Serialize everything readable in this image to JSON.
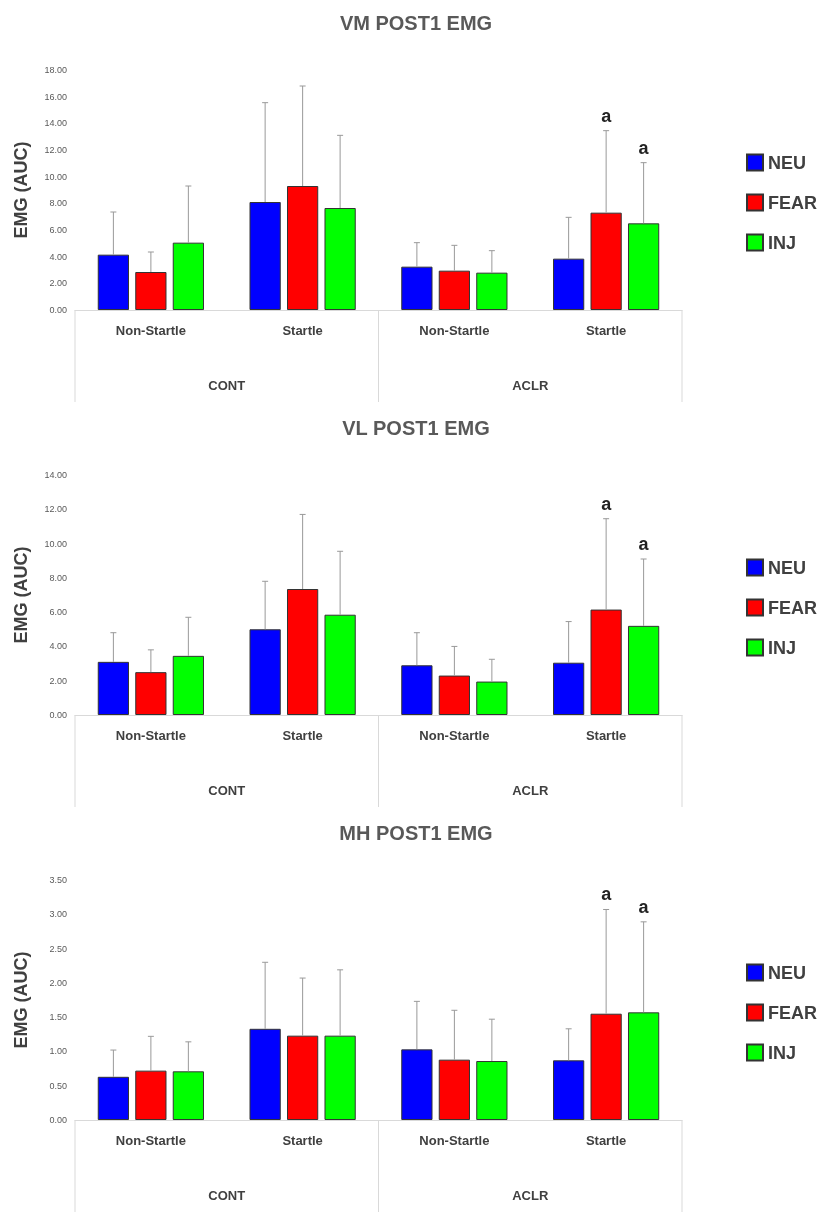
{
  "chart_data": [
    {
      "type": "bar",
      "title": "VM POST1 EMG",
      "ylabel": "EMG (AUC)",
      "categories": [
        "Non-Startle",
        "Startle",
        "Non-Startle",
        "Startle"
      ],
      "series": [
        {
          "name": "NEU",
          "color": "#0000ff",
          "values": [
            4.15,
            8.1,
            3.25,
            3.85
          ],
          "errors": [
            [
              4.15,
              7.35
            ],
            [
              8.1,
              15.55
            ],
            [
              3.25,
              5.05
            ],
            [
              3.85,
              6.95
            ]
          ]
        },
        {
          "name": "FEAR",
          "color": "#ff0000",
          "values": [
            2.85,
            9.3,
            2.95,
            7.3
          ],
          "errors": [
            [
              2.85,
              4.35
            ],
            [
              9.3,
              16.8
            ],
            [
              2.95,
              4.85
            ],
            [
              7.3,
              13.45
            ]
          ]
        },
        {
          "name": "INJ",
          "color": "#00ff00",
          "values": [
            5.05,
            7.65,
            2.8,
            6.5
          ],
          "errors": [
            [
              5.05,
              9.3
            ],
            [
              7.65,
              13.1
            ],
            [
              2.8,
              4.45
            ],
            [
              6.5,
              11.05
            ]
          ]
        }
      ],
      "ylim": [
        0,
        18
      ],
      "yticks": [
        {
          "value": 0,
          "label": "0.00"
        },
        {
          "value": 2,
          "label": "2.00"
        },
        {
          "value": 4,
          "label": "4.00"
        },
        {
          "value": 6,
          "label": "6.00"
        },
        {
          "value": 8,
          "label": "8.00"
        },
        {
          "value": 10,
          "label": "10.00"
        },
        {
          "value": 12,
          "label": "12.00"
        },
        {
          "value": 14,
          "label": "14.00"
        },
        {
          "value": 16,
          "label": "16.00"
        },
        {
          "value": 18,
          "label": "18.00"
        }
      ],
      "annotations": [
        "CONT",
        "ACLR",
        "a",
        "a"
      ],
      "legend": "right",
      "grid": false
    },
    {
      "type": "bar",
      "title": "VL POST1 EMG",
      "ylabel": "EMG (AUC)",
      "categories": [
        "Non-Startle",
        "Startle",
        "Non-Startle",
        "Startle"
      ],
      "series": [
        {
          "name": "NEU",
          "color": "#0000ff",
          "values": [
            3.1,
            5.0,
            2.9,
            3.05
          ],
          "errors": [
            [
              3.1,
              4.8
            ],
            [
              5.0,
              7.8
            ],
            [
              2.9,
              4.8
            ],
            [
              3.05,
              5.45
            ]
          ]
        },
        {
          "name": "FEAR",
          "color": "#ff0000",
          "values": [
            2.5,
            7.35,
            2.3,
            6.15
          ],
          "errors": [
            [
              2.5,
              3.8
            ],
            [
              7.35,
              11.7
            ],
            [
              2.3,
              4.0
            ],
            [
              6.15,
              11.45
            ]
          ]
        },
        {
          "name": "INJ",
          "color": "#00ff00",
          "values": [
            3.45,
            5.85,
            1.95,
            5.2
          ],
          "errors": [
            [
              3.45,
              5.7
            ],
            [
              5.85,
              9.55
            ],
            [
              1.95,
              3.25
            ],
            [
              5.2,
              9.1
            ]
          ]
        }
      ],
      "ylim": [
        0,
        14
      ],
      "yticks": [
        {
          "value": 0,
          "label": "0.00"
        },
        {
          "value": 2,
          "label": "2.00"
        },
        {
          "value": 4,
          "label": "4.00"
        },
        {
          "value": 6,
          "label": "6.00"
        },
        {
          "value": 8,
          "label": "8.00"
        },
        {
          "value": 10,
          "label": "10.00"
        },
        {
          "value": 12,
          "label": "12.00"
        },
        {
          "value": 14,
          "label": "14.00"
        }
      ],
      "annotations": [
        "CONT",
        "ACLR",
        "a",
        "a"
      ],
      "legend": "right",
      "grid": false
    },
    {
      "type": "bar",
      "title": "MH POST1 EMG",
      "ylabel": "EMG (AUC)",
      "categories": [
        "Non-Startle",
        "Startle",
        "Non-Startle",
        "Startle"
      ],
      "series": [
        {
          "name": "NEU",
          "color": "#0000ff",
          "values": [
            0.63,
            1.33,
            1.03,
            0.87
          ],
          "errors": [
            [
              0.63,
              1.02
            ],
            [
              1.33,
              2.3
            ],
            [
              1.03,
              1.73
            ],
            [
              0.87,
              1.33
            ]
          ]
        },
        {
          "name": "FEAR",
          "color": "#ff0000",
          "values": [
            0.72,
            1.23,
            0.88,
            1.55
          ],
          "errors": [
            [
              0.72,
              1.22
            ],
            [
              1.23,
              2.07
            ],
            [
              0.88,
              1.6
            ],
            [
              1.55,
              3.07
            ]
          ]
        },
        {
          "name": "INJ",
          "color": "#00ff00",
          "values": [
            0.71,
            1.23,
            0.86,
            1.57
          ],
          "errors": [
            [
              0.71,
              1.14
            ],
            [
              1.23,
              2.19
            ],
            [
              0.86,
              1.47
            ],
            [
              1.57,
              2.89
            ]
          ]
        }
      ],
      "ylim": [
        0,
        3.5
      ],
      "yticks": [
        {
          "value": 0,
          "label": "0.00"
        },
        {
          "value": 0.5,
          "label": "0.50"
        },
        {
          "value": 1,
          "label": "1.00"
        },
        {
          "value": 1.5,
          "label": "1.50"
        },
        {
          "value": 2,
          "label": "2.00"
        },
        {
          "value": 2.5,
          "label": "2.50"
        },
        {
          "value": 3,
          "label": "3.00"
        },
        {
          "value": 3.5,
          "label": "3.50"
        }
      ],
      "annotations": [
        "CONT",
        "ACLR",
        "a",
        "a"
      ],
      "legend": "right",
      "grid": false
    }
  ]
}
